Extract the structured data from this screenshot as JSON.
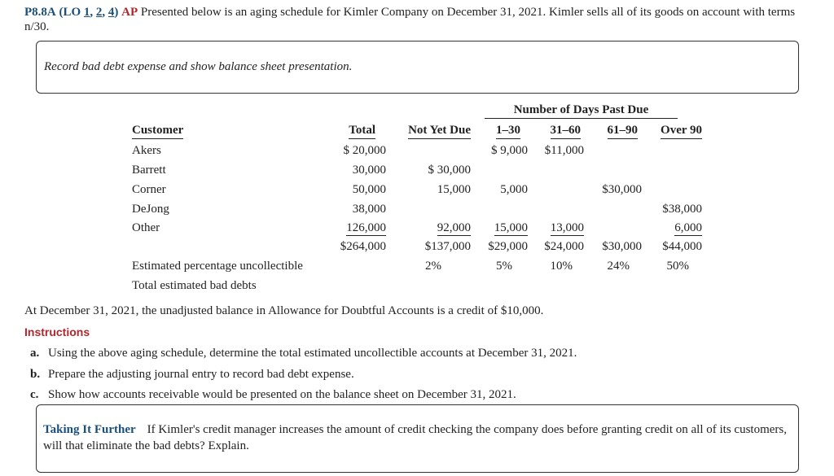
{
  "header": {
    "problem": "P8.8A",
    "lo_open": "(LO",
    "lo_refs": [
      "1",
      "2",
      "4"
    ],
    "lo_separator": ", ",
    "lo_close": ")",
    "level": "AP",
    "text": "Presented below is an aging schedule for Kimler Company on December 31, 2021. Kimler sells all of its goods on account with terms n/30."
  },
  "task_box": "Record bad debt expense and show balance sheet presentation.",
  "table": {
    "group_header": "Number of Days Past Due",
    "columns": [
      "Customer",
      "Total",
      "Not Yet Due",
      "1–30",
      "31–60",
      "61–90",
      "Over 90"
    ],
    "rows": [
      [
        "Akers",
        "$ 20,000",
        null,
        "$ 9,000",
        "$11,000",
        null,
        null
      ],
      [
        "Barrett",
        "30,000",
        "$ 30,000",
        null,
        null,
        null,
        null
      ],
      [
        "Corner",
        "50,000",
        "15,000",
        "5,000",
        null,
        "$30,000",
        null
      ],
      [
        "DeJong",
        "38,000",
        null,
        null,
        null,
        null,
        "$38,000"
      ],
      [
        "Other",
        "126,000",
        "92,000",
        "15,000",
        "13,000",
        null,
        "6,000"
      ]
    ],
    "totals": [
      "$264,000",
      "$137,000",
      "$29,000",
      "$24,000",
      "$30,000",
      "$44,000"
    ],
    "percentage_row": {
      "label": "Estimated percentage uncollectible",
      "values": [
        "2%",
        "5%",
        "10%",
        "24%",
        "50%"
      ]
    },
    "final_row": "Total estimated bad debts"
  },
  "balance_note": "At December 31, 2021, the unadjusted balance in Allowance for Doubtful Accounts is a credit of $10,000.",
  "instructions_title": "Instructions",
  "instructions": [
    {
      "letter": "a.",
      "text": "Using the above aging schedule, determine the total estimated uncollectible accounts at December 31, 2021."
    },
    {
      "letter": "b.",
      "text": "Prepare the adjusting journal entry to record bad debt expense."
    },
    {
      "letter": "c.",
      "text": "Show how accounts receivable would be presented on the balance sheet on December 31, 2021."
    }
  ],
  "further": {
    "title": "Taking It Further",
    "text": "If Kimler's credit manager increases the amount of credit checking the company does before granting credit on all of its customers, will that eliminate the bad debts? Explain."
  }
}
